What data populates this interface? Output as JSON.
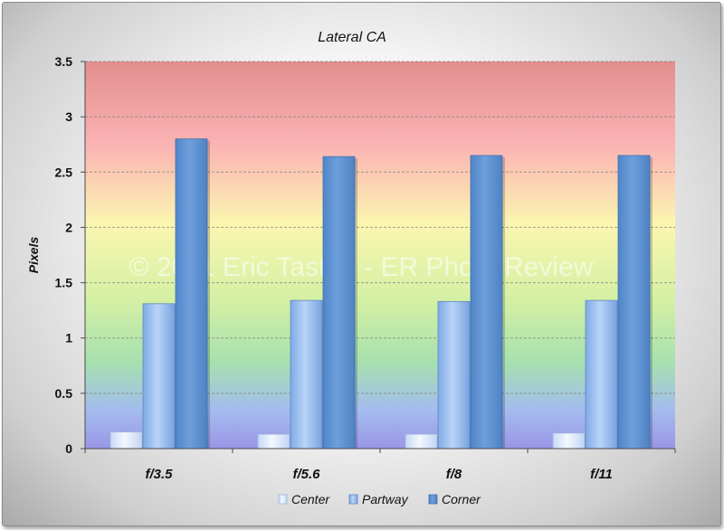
{
  "watermark": "© 2011 Eric Tastad - ER Photo Review",
  "colors": {
    "center": "#d8e6fb",
    "partway": "#8fb8ec",
    "corner": "#5f94d3"
  },
  "chart_data": {
    "type": "bar",
    "title": "Lateral CA",
    "xlabel": "",
    "ylabel": "Pixels",
    "ylim": [
      0,
      3.5
    ],
    "yticks": [
      "0",
      "0.5",
      "1",
      "1.5",
      "2",
      "2.5",
      "3",
      "3.5"
    ],
    "grid": true,
    "legend_position": "bottom",
    "categories": [
      "f/3.5",
      "f/5.6",
      "f/8",
      "f/11"
    ],
    "series": [
      {
        "name": "Center",
        "values": [
          0.15,
          0.13,
          0.13,
          0.14
        ]
      },
      {
        "name": "Partway",
        "values": [
          1.31,
          1.34,
          1.33,
          1.34
        ]
      },
      {
        "name": "Corner",
        "values": [
          2.8,
          2.64,
          2.65,
          2.65
        ]
      }
    ]
  }
}
